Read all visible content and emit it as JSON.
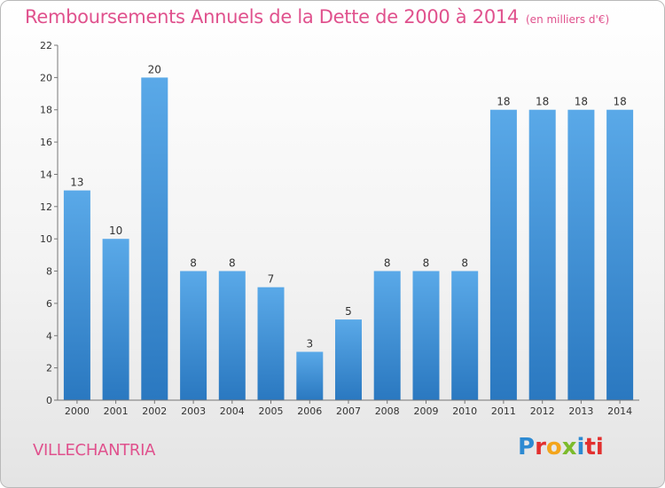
{
  "chart_data": {
    "type": "bar",
    "title": "Remboursements Annuels de la Dette de 2000 à 2014",
    "unit_label": "(en milliers d'€)",
    "categories": [
      "2000",
      "2001",
      "2002",
      "2003",
      "2004",
      "2005",
      "2006",
      "2007",
      "2008",
      "2009",
      "2010",
      "2011",
      "2012",
      "2013",
      "2014"
    ],
    "values": [
      13,
      10,
      20,
      8,
      8,
      7,
      3,
      5,
      8,
      8,
      8,
      18,
      18,
      18,
      18
    ],
    "data_labels": [
      "13",
      "10",
      "20",
      "8",
      "8",
      "7",
      "3",
      "5",
      "8",
      "8",
      "8",
      "18",
      "18",
      "18",
      "18"
    ],
    "yticks": [
      "0",
      "2",
      "4",
      "6",
      "8",
      "10",
      "12",
      "14",
      "16",
      "18",
      "20",
      "22"
    ],
    "ylim": [
      0,
      22
    ],
    "xlabel": "",
    "ylabel": "",
    "grid": false,
    "bar_color": "#4f9fdf",
    "bar_color_dark": "#2c78c0"
  },
  "footer": {
    "city": "VILLECHANTRIA",
    "logo_letters": [
      "P",
      "r",
      "o",
      "x",
      "i",
      "ti"
    ]
  },
  "colors": {
    "title": "#e0518d",
    "axis": "#555555"
  }
}
